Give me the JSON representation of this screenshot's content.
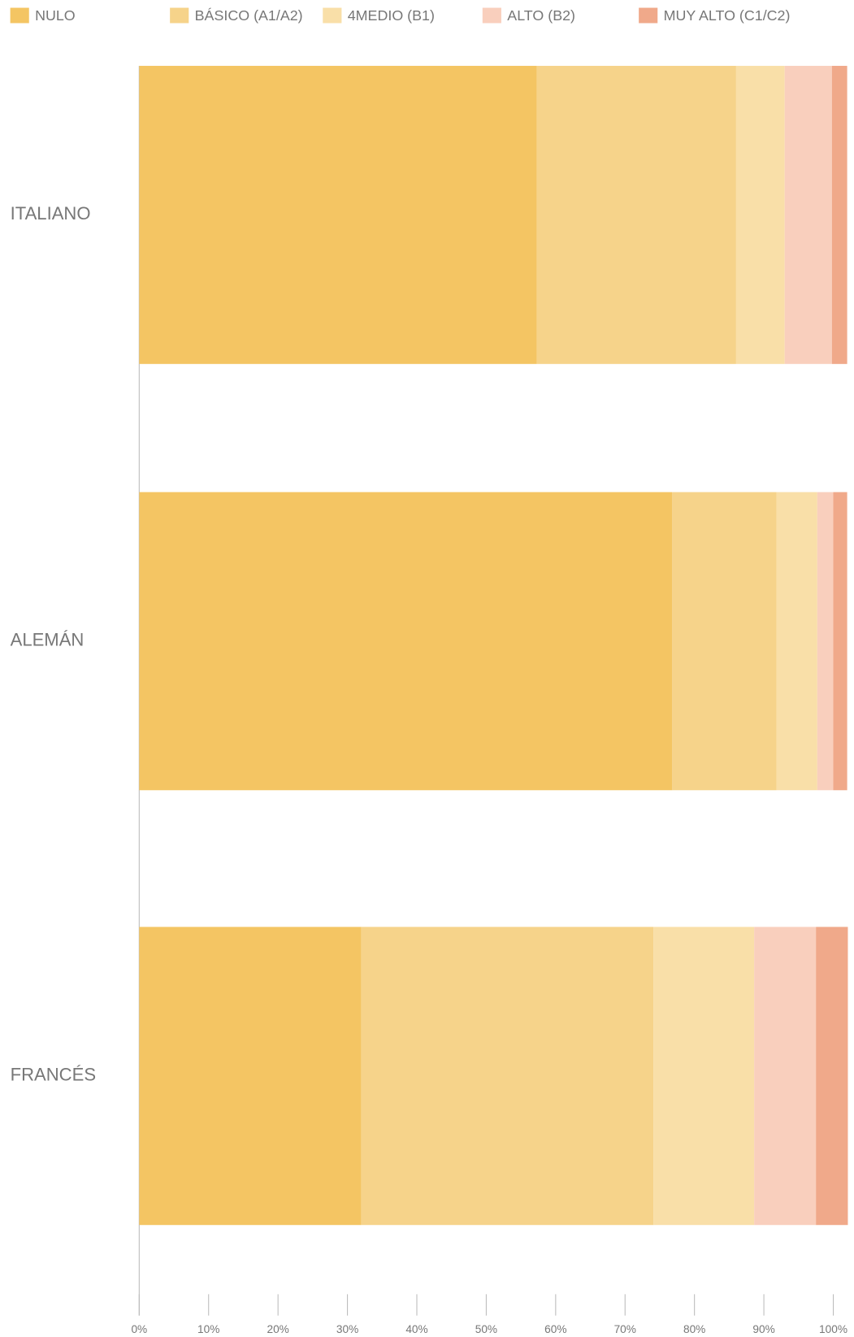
{
  "chart_data": {
    "type": "stacked-barh",
    "categories": [
      "ITALIANO",
      "ALEMÁN",
      "FRANCÉS"
    ],
    "series": [
      {
        "name": "NULO",
        "color": "#f4c563",
        "values": [
          57.3,
          76.8,
          32.0
        ]
      },
      {
        "name": "BÁSICO (A1/A2)",
        "color": "#f6d38a",
        "values": [
          28.7,
          15.0,
          42.1
        ]
      },
      {
        "name": "4MEDIO (B1)",
        "color": "#f9dfa8",
        "values": [
          7.0,
          5.9,
          14.5
        ]
      },
      {
        "name": "ALTO (B2)",
        "color": "#f9cfbd",
        "values": [
          6.8,
          2.3,
          8.9
        ]
      },
      {
        "name": "MUY ALTO (C1/C2)",
        "color": "#f0a98a",
        "values": [
          2.2,
          2.0,
          4.6
        ]
      }
    ],
    "xlim": [
      0,
      102
    ],
    "xticks": [
      {
        "value": 0,
        "label": "0%"
      },
      {
        "value": 10,
        "label": "10%"
      },
      {
        "value": 20,
        "label": "20%"
      },
      {
        "value": 30,
        "label": "30%"
      },
      {
        "value": 40,
        "label": "40%"
      },
      {
        "value": 50,
        "label": "50%"
      },
      {
        "value": 60,
        "label": "60%"
      },
      {
        "value": 70,
        "label": "70%"
      },
      {
        "value": 80,
        "label": "80%"
      },
      {
        "value": 90,
        "label": "90%"
      },
      {
        "value": 100,
        "label": "100%"
      }
    ],
    "legend": "top"
  }
}
